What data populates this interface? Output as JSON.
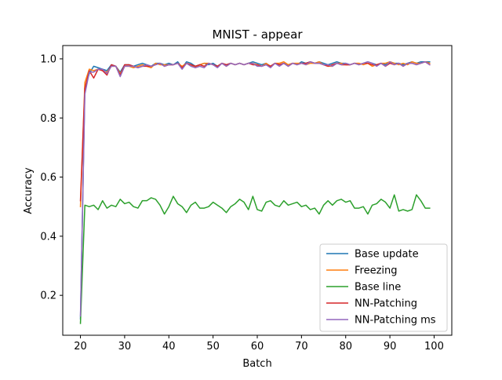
{
  "chart_data": {
    "type": "line",
    "title": "MNIST - appear",
    "xlabel": "Batch",
    "ylabel": "Accuracy",
    "xlim": [
      16,
      104
    ],
    "ylim": [
      0.065,
      1.045
    ],
    "xticks": [
      20,
      30,
      40,
      50,
      60,
      70,
      80,
      90,
      100
    ],
    "yticks": [
      0.2,
      0.4,
      0.6,
      0.8,
      1.0
    ],
    "ytick_labels": [
      "0.2",
      "0.4",
      "0.6",
      "0.8",
      "1.0"
    ],
    "legend_position": "lower-right",
    "x_start": 20,
    "series": [
      {
        "name": "Base update",
        "color": "#1f77b4",
        "values": [
          0.12,
          0.9,
          0.95,
          0.975,
          0.97,
          0.965,
          0.96,
          0.98,
          0.975,
          0.955,
          0.98,
          0.98,
          0.975,
          0.98,
          0.985,
          0.98,
          0.975,
          0.985,
          0.985,
          0.98,
          0.985,
          0.98,
          0.99,
          0.97,
          0.99,
          0.985,
          0.975,
          0.98,
          0.985,
          0.98,
          0.985,
          0.975,
          0.985,
          0.98,
          0.985,
          0.98,
          0.985,
          0.98,
          0.985,
          0.99,
          0.985,
          0.98,
          0.985,
          0.975,
          0.985,
          0.98,
          0.985,
          0.98,
          0.985,
          0.98,
          0.99,
          0.985,
          0.99,
          0.985,
          0.99,
          0.985,
          0.98,
          0.985,
          0.99,
          0.985,
          0.985,
          0.98,
          0.985,
          0.98,
          0.985,
          0.99,
          0.985,
          0.98,
          0.985,
          0.98,
          0.99,
          0.985,
          0.985,
          0.98,
          0.985,
          0.99,
          0.985,
          0.99,
          0.99,
          0.99
        ]
      },
      {
        "name": "Freezing",
        "color": "#ff7f0e",
        "values": [
          0.5,
          0.92,
          0.965,
          0.96,
          0.965,
          0.96,
          0.955,
          0.975,
          0.975,
          0.95,
          0.975,
          0.975,
          0.97,
          0.975,
          0.98,
          0.975,
          0.97,
          0.985,
          0.98,
          0.98,
          0.98,
          0.98,
          0.985,
          0.975,
          0.985,
          0.98,
          0.97,
          0.98,
          0.985,
          0.985,
          0.98,
          0.975,
          0.985,
          0.975,
          0.985,
          0.98,
          0.985,
          0.98,
          0.985,
          0.985,
          0.98,
          0.975,
          0.985,
          0.975,
          0.985,
          0.985,
          0.99,
          0.98,
          0.985,
          0.985,
          0.985,
          0.98,
          0.985,
          0.985,
          0.99,
          0.98,
          0.975,
          0.975,
          0.985,
          0.985,
          0.98,
          0.98,
          0.985,
          0.985,
          0.98,
          0.985,
          0.975,
          0.98,
          0.985,
          0.985,
          0.99,
          0.985,
          0.98,
          0.985,
          0.98,
          0.99,
          0.985,
          0.985,
          0.99,
          0.985
        ]
      },
      {
        "name": "Base line",
        "color": "#2ca02c",
        "values": [
          0.105,
          0.505,
          0.5,
          0.505,
          0.49,
          0.52,
          0.495,
          0.505,
          0.5,
          0.525,
          0.51,
          0.515,
          0.5,
          0.495,
          0.52,
          0.52,
          0.53,
          0.525,
          0.505,
          0.475,
          0.5,
          0.535,
          0.51,
          0.5,
          0.48,
          0.505,
          0.515,
          0.495,
          0.495,
          0.5,
          0.515,
          0.505,
          0.495,
          0.48,
          0.5,
          0.51,
          0.525,
          0.515,
          0.49,
          0.535,
          0.49,
          0.485,
          0.515,
          0.52,
          0.505,
          0.5,
          0.52,
          0.505,
          0.51,
          0.515,
          0.5,
          0.505,
          0.49,
          0.495,
          0.475,
          0.505,
          0.52,
          0.505,
          0.52,
          0.525,
          0.515,
          0.52,
          0.495,
          0.495,
          0.5,
          0.475,
          0.505,
          0.51,
          0.525,
          0.515,
          0.495,
          0.54,
          0.485,
          0.49,
          0.485,
          0.49,
          0.54,
          0.52,
          0.495,
          0.495
        ]
      },
      {
        "name": "NN-Patching",
        "color": "#d62728",
        "values": [
          0.52,
          0.9,
          0.96,
          0.935,
          0.965,
          0.96,
          0.945,
          0.98,
          0.975,
          0.945,
          0.98,
          0.98,
          0.975,
          0.97,
          0.975,
          0.975,
          0.975,
          0.98,
          0.985,
          0.975,
          0.98,
          0.98,
          0.985,
          0.97,
          0.985,
          0.98,
          0.975,
          0.98,
          0.975,
          0.985,
          0.98,
          0.975,
          0.985,
          0.98,
          0.985,
          0.98,
          0.985,
          0.98,
          0.985,
          0.98,
          0.98,
          0.975,
          0.98,
          0.975,
          0.985,
          0.98,
          0.985,
          0.975,
          0.985,
          0.98,
          0.985,
          0.985,
          0.99,
          0.985,
          0.985,
          0.98,
          0.975,
          0.98,
          0.985,
          0.98,
          0.98,
          0.98,
          0.985,
          0.98,
          0.985,
          0.985,
          0.98,
          0.98,
          0.985,
          0.975,
          0.985,
          0.98,
          0.985,
          0.975,
          0.985,
          0.985,
          0.98,
          0.985,
          0.99,
          0.98
        ]
      },
      {
        "name": "NN-Patching ms",
        "color": "#9467bd",
        "values": [
          0.13,
          0.88,
          0.955,
          0.955,
          0.965,
          0.965,
          0.95,
          0.975,
          0.975,
          0.94,
          0.975,
          0.975,
          0.975,
          0.97,
          0.975,
          0.98,
          0.975,
          0.98,
          0.985,
          0.975,
          0.98,
          0.98,
          0.985,
          0.965,
          0.985,
          0.975,
          0.97,
          0.975,
          0.97,
          0.985,
          0.98,
          0.97,
          0.985,
          0.975,
          0.985,
          0.98,
          0.985,
          0.98,
          0.985,
          0.985,
          0.975,
          0.975,
          0.98,
          0.97,
          0.985,
          0.975,
          0.985,
          0.975,
          0.985,
          0.98,
          0.985,
          0.98,
          0.99,
          0.985,
          0.985,
          0.98,
          0.98,
          0.975,
          0.985,
          0.98,
          0.985,
          0.98,
          0.985,
          0.98,
          0.985,
          0.99,
          0.985,
          0.975,
          0.985,
          0.975,
          0.99,
          0.98,
          0.985,
          0.975,
          0.985,
          0.985,
          0.98,
          0.985,
          0.99,
          0.98
        ]
      }
    ]
  }
}
